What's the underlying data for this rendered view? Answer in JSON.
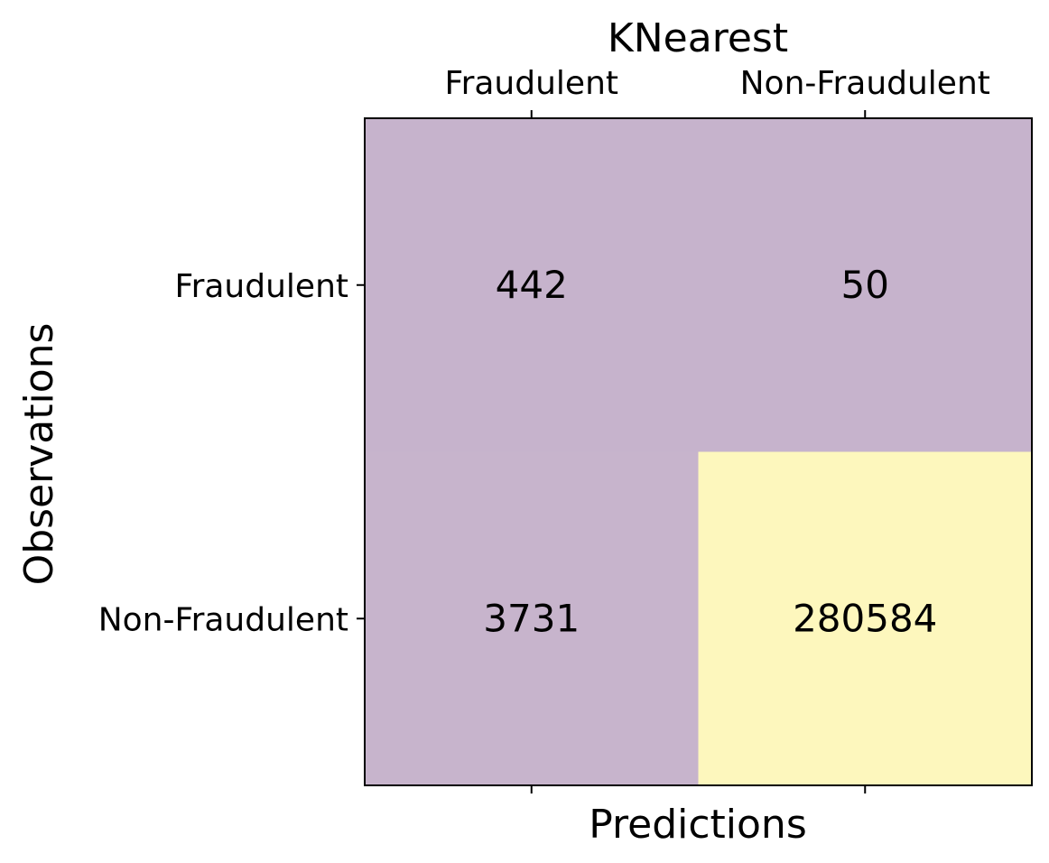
{
  "chart_data": {
    "type": "heatmap",
    "title": "KNearest",
    "xlabel": "Predictions",
    "ylabel": "Observations",
    "x_categories": [
      "Fraudulent",
      "Non-Fraudulent"
    ],
    "y_categories": [
      "Fraudulent",
      "Non-Fraudulent"
    ],
    "values": [
      [
        442,
        50
      ],
      [
        3731,
        280584
      ]
    ],
    "colors": {
      "low": "#c6b3cc",
      "high": "#fdf7bd"
    },
    "grid": false,
    "x_tick_position": "top"
  }
}
